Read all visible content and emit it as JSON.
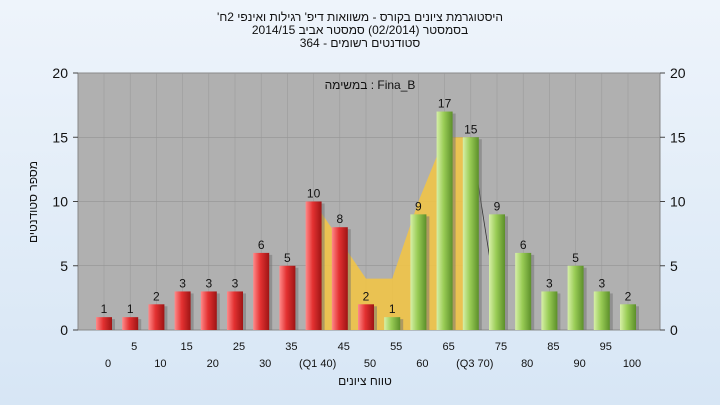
{
  "title_lines": [
    "'היסטוגרמת ציונים בקורס - משוואות דיפ' רגילות ואינפי 2ח",
    "בסמסטר  (02/2014)  סמסטר אביב 2014/15",
    "סטודנטים רשומים - 364"
  ],
  "chart_data": {
    "type": "bar",
    "annotation": "במשימה : Fina_B",
    "xlabel": "טווח ציונים",
    "ylabel": "מספר סטודנטים",
    "ylim": [
      0,
      20
    ],
    "yticks": [
      0,
      5,
      10,
      15,
      20
    ],
    "grid": true,
    "categories": [
      0,
      5,
      10,
      15,
      20,
      25,
      30,
      35,
      40,
      45,
      50,
      55,
      60,
      65,
      70,
      75,
      80,
      85,
      90,
      95,
      100
    ],
    "values": [
      1,
      1,
      2,
      3,
      3,
      3,
      6,
      5,
      10,
      8,
      2,
      1,
      9,
      17,
      15,
      9,
      6,
      3,
      5,
      3,
      2
    ],
    "bar_colors": [
      "red",
      "red",
      "red",
      "red",
      "red",
      "red",
      "red",
      "red",
      "red",
      "red",
      "red",
      "green",
      "green",
      "green",
      "green",
      "green",
      "green",
      "green",
      "green",
      "green",
      "green"
    ],
    "x_tick_labels_upper": [
      "5",
      "15",
      "25",
      "35",
      "45",
      "55",
      "65",
      "75",
      "85",
      "95"
    ],
    "x_tick_labels_lower": [
      "0",
      "10",
      "20",
      "30",
      "(Q1 40)",
      "50",
      "60",
      "(Q3 70)",
      "80",
      "90",
      "100"
    ],
    "area_band": [
      {
        "x": 40,
        "y": 10
      },
      {
        "x": 45,
        "y": 7
      },
      {
        "x": 50,
        "y": 4
      },
      {
        "x": 55,
        "y": 4
      },
      {
        "x": 60,
        "y": 10
      },
      {
        "x": 65,
        "y": 15
      },
      {
        "x": 70,
        "y": 15
      }
    ],
    "colors": {
      "red": "#e23a3a",
      "green": "#9acd5a",
      "area": "#f5c542",
      "plot_bg": "#b0b0b0"
    }
  }
}
